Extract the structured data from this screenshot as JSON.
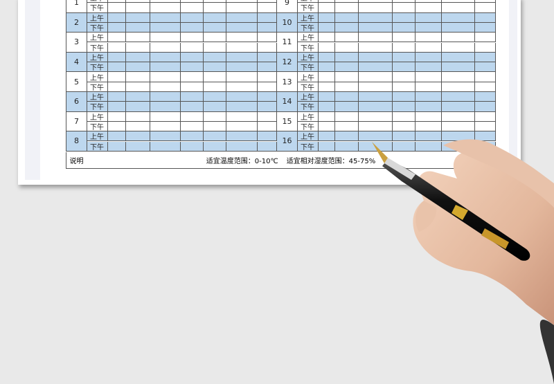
{
  "table": {
    "days_left": [
      "1",
      "2",
      "3",
      "4",
      "5",
      "6",
      "7",
      "8"
    ],
    "days_right": [
      "9",
      "10",
      "11",
      "12",
      "13",
      "14",
      "15",
      "16"
    ],
    "periods": [
      "上午",
      "下午"
    ],
    "note_label": "说明",
    "note_temperature": "适宜温度范围：0-10℃",
    "note_humidity": "适宜相对湿度范围：45-75%"
  },
  "colors": {
    "row_fill": "#bdd7ee",
    "grid": "#555555"
  }
}
